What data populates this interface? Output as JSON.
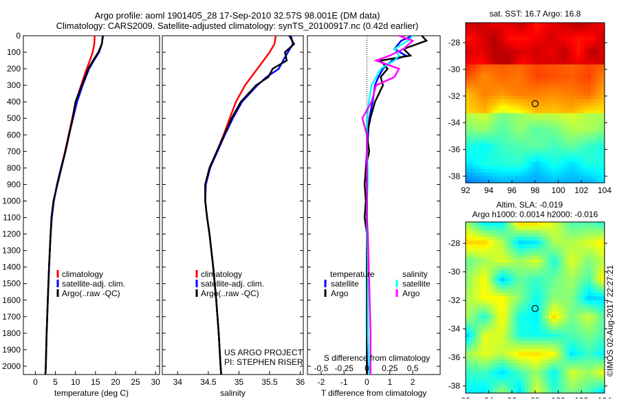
{
  "title_line1": "Argo profile: aoml 1901405_28 17-Sep-2010 32.57S 98.001E (DM data)",
  "title_line2": "Climatology: CARS2009. Satellite-adjusted climatology: synTS_20100917.nc (0.42d earlier)",
  "credit_project": "US ARGO PROJECT",
  "credit_pi": "PI: STEPHEN RISER",
  "watermark": "©IMOS 02-Aug-2017 22:27:21",
  "colors": {
    "climatology": "#ff0000",
    "satellite": "#0000ff",
    "argo": "#000000",
    "sal_satellite": "#00ffff",
    "sal_argo": "#ff00ff"
  },
  "chart_data": [
    {
      "type": "line",
      "xlabel": "temperature (deg C)",
      "ylabel": "",
      "xlim": [
        -3,
        31
      ],
      "ylim": [
        2050,
        0
      ],
      "xticks": [
        "0",
        "5",
        "10",
        "15",
        "20",
        "25",
        "30"
      ],
      "xtick_values": [
        0,
        5,
        10,
        15,
        20,
        25,
        30
      ],
      "yticks": [
        "0",
        "100",
        "200",
        "300",
        "400",
        "500",
        "600",
        "700",
        "800",
        "900",
        "1000",
        "1100",
        "1200",
        "1300",
        "1400",
        "1500",
        "1600",
        "1700",
        "1800",
        "1900",
        "2000"
      ],
      "legend": [
        "climatology",
        "satellite-adj. clim.",
        "Argo(..raw -QC)"
      ],
      "depth": [
        0,
        50,
        100,
        150,
        200,
        300,
        400,
        500,
        600,
        700,
        800,
        900,
        1000,
        1100,
        1200,
        1400,
        1600,
        1800,
        2000,
        2050
      ],
      "series": [
        {
          "name": "climatology",
          "color": "#ff0000",
          "values": [
            14.8,
            14.7,
            14.3,
            13.6,
            12.8,
            11.4,
            10.1,
            9.2,
            8.3,
            7.4,
            6.4,
            5.4,
            4.6,
            4.1,
            3.8,
            3.4,
            3.1,
            2.8,
            2.6,
            2.5
          ]
        },
        {
          "name": "satellite-adj. clim.",
          "color": "#0000ff",
          "values": [
            16.9,
            16.6,
            15.9,
            14.6,
            13.4,
            11.8,
            10.4,
            9.4,
            8.4,
            7.5,
            6.4,
            5.4,
            4.6,
            4.1,
            3.8,
            3.4,
            3.1,
            2.8,
            2.6,
            2.5
          ]
        },
        {
          "name": "Argo(..raw -QC)",
          "color": "#000000",
          "values": [
            16.8,
            16.6,
            15.7,
            14.4,
            13.2,
            11.6,
            10.0,
            9.3,
            8.4,
            7.5,
            6.5,
            5.5,
            4.5,
            4.0,
            3.8,
            3.4,
            3.1,
            2.8,
            2.6,
            2.5
          ]
        }
      ]
    },
    {
      "type": "line",
      "xlabel": "salinity",
      "xlim": [
        33.75,
        36.05
      ],
      "ylim": [
        2050,
        0
      ],
      "xticks": [
        "34",
        "34.5",
        "35",
        "35.5",
        "36"
      ],
      "xtick_values": [
        34,
        34.5,
        35,
        35.5,
        36
      ],
      "legend": [
        "climatology",
        "satellite-adj. clim.",
        "Argo(..raw -QC)"
      ],
      "depth": [
        0,
        50,
        100,
        150,
        200,
        250,
        300,
        400,
        500,
        600,
        700,
        800,
        900,
        1000,
        1100,
        1200,
        1400,
        1600,
        1800,
        2000,
        2050
      ],
      "series": [
        {
          "name": "climatology",
          "color": "#ff0000",
          "values": [
            35.6,
            35.58,
            35.5,
            35.4,
            35.3,
            35.2,
            35.1,
            34.95,
            34.85,
            34.75,
            34.64,
            34.52,
            34.45,
            34.45,
            34.48,
            34.52,
            34.58,
            34.63,
            34.67,
            34.7,
            34.71
          ]
        },
        {
          "name": "satellite-adj. clim.",
          "color": "#0000ff",
          "values": [
            35.85,
            35.88,
            35.8,
            35.72,
            35.65,
            35.45,
            35.3,
            35.05,
            34.9,
            34.77,
            34.65,
            34.53,
            34.46,
            34.45,
            34.48,
            34.52,
            34.58,
            34.63,
            34.67,
            34.7,
            34.71
          ]
        },
        {
          "name": "Argo(..raw -QC)",
          "color": "#000000",
          "values": [
            35.82,
            35.9,
            35.75,
            35.78,
            35.55,
            35.48,
            35.28,
            35.03,
            34.88,
            34.76,
            34.64,
            34.52,
            34.45,
            34.45,
            34.48,
            34.52,
            34.58,
            34.63,
            34.67,
            34.7,
            34.71
          ]
        }
      ]
    },
    {
      "type": "line",
      "xlabel": "T difference from climatology",
      "xlabel2": "S difference from climatology",
      "xlim": [
        -2.6,
        3.2
      ],
      "ylim": [
        2050,
        0
      ],
      "xticks": [
        "-2",
        "-1",
        "0",
        "1",
        "2"
      ],
      "xtick_values": [
        -2,
        -1,
        0,
        1,
        2
      ],
      "xticks2": [
        "-0.5",
        "-0.25",
        "0",
        "0.25",
        "0.5"
      ],
      "xtick2_values": [
        -0.5,
        -0.25,
        0,
        0.25,
        0.5
      ],
      "legend_temperature": "temperature",
      "legend_salinity": "salinity",
      "legend": [
        "satellite",
        "Argo",
        "satellite",
        "Argo"
      ],
      "depth": [
        0,
        30,
        80,
        120,
        150,
        200,
        250,
        300,
        400,
        500,
        600,
        700,
        800,
        900,
        1000,
        1100,
        1200,
        1400,
        1600,
        1800,
        2000,
        2050
      ],
      "series": [
        {
          "name": "T satellite",
          "color": "#0000ff",
          "values": [
            2.0,
            1.5,
            1.2,
            1.7,
            1.1,
            0.7,
            0.5,
            0.35,
            0.25,
            0.1,
            0.05,
            0.0,
            -0.05,
            0.0,
            0.0,
            0.0,
            0.0,
            0.0,
            0.0,
            0.0,
            0.0,
            0.0
          ]
        },
        {
          "name": "T Argo",
          "color": "#000000",
          "values": [
            2.4,
            2.6,
            1.6,
            1.9,
            0.6,
            0.9,
            0.6,
            0.7,
            0.35,
            0.15,
            0.0,
            0.1,
            -0.05,
            -0.1,
            -0.05,
            -0.1,
            0.0,
            0.0,
            0.0,
            0.0,
            0.0,
            0.0
          ]
        },
        {
          "name": "S satellite",
          "color": "#00ffff",
          "values": [
            0.5,
            0.45,
            0.3,
            0.35,
            0.3,
            0.15,
            0.1,
            0.05,
            0.02,
            0.0,
            0.0,
            0.0,
            0.01,
            0.01,
            0.0,
            0.0,
            0.0,
            0.01,
            0.01,
            0.01,
            0.02,
            0.02
          ]
        },
        {
          "name": "S Argo",
          "color": "#ff00ff",
          "values": [
            0.35,
            0.5,
            0.4,
            0.25,
            0.1,
            0.35,
            0.3,
            0.1,
            0.05,
            -0.05,
            0.0,
            0.0,
            0.0,
            0.0,
            0.0,
            0.0,
            0.01,
            0.02,
            0.03,
            0.04,
            0.04,
            0.04
          ]
        }
      ]
    },
    {
      "type": "heatmap",
      "title": "sat. SST: 16.7  Argo: 16.8",
      "xticks": [
        "92",
        "94",
        "96",
        "98",
        "100",
        "102",
        "104"
      ],
      "yticks": [
        "-28",
        "-30",
        "-32",
        "-34",
        "-36",
        "-38"
      ],
      "xlim": [
        92,
        104
      ],
      "ylim": [
        -38.5,
        -26.5
      ],
      "marker": [
        98,
        -32.57
      ]
    },
    {
      "type": "heatmap",
      "title": "Altim. SLA: -0.019",
      "subtitle": "Argo h1000: 0.0014  h2000: -0.016",
      "xticks": [
        "92",
        "94",
        "96",
        "98",
        "100",
        "102",
        "104"
      ],
      "yticks": [
        "-28",
        "-30",
        "-32",
        "-34",
        "-36",
        "-38"
      ],
      "xlim": [
        92,
        104
      ],
      "ylim": [
        -38.5,
        -26.5
      ],
      "marker": [
        98,
        -32.57
      ]
    }
  ]
}
